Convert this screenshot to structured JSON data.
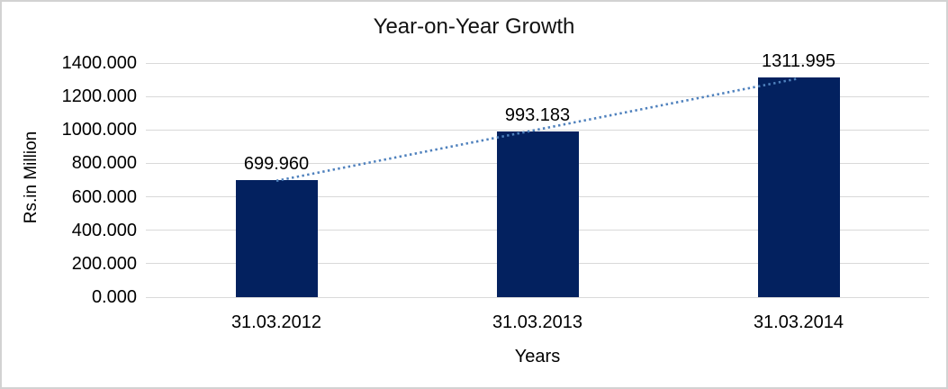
{
  "chart_data": {
    "type": "bar",
    "title": "Year-on-Year Growth",
    "categories": [
      "31.03.2012",
      "31.03.2013",
      "31.03.2014"
    ],
    "values": [
      699.96,
      993.183,
      1311.995
    ],
    "data_labels": [
      "699.960",
      "993.183",
      "1311.995"
    ],
    "xlabel": "Years",
    "ylabel": "Rs.in Million",
    "ylim": [
      0,
      1400
    ],
    "ytick_interval": 200,
    "ytick_labels": [
      "0.000",
      "200.000",
      "400.000",
      "600.000",
      "800.000",
      "1000.000",
      "1200.000",
      "1400.000"
    ],
    "grid": true,
    "legend": "none",
    "colors": {
      "bar": "#03215f",
      "trendline": "#4f81bd",
      "gridline": "#d9d9d9",
      "frame_border": "#d2d2d2",
      "text": "#000000"
    },
    "trendline": {
      "type": "linear",
      "style": "dotted"
    }
  }
}
